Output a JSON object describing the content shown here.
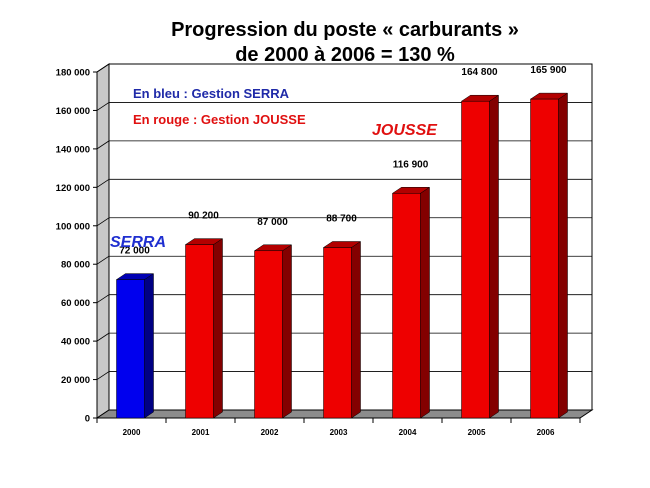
{
  "chart_data": {
    "type": "bar",
    "title": "Progression du poste « carburants »",
    "subtitle": "de 2000 à 2006 = 130 %",
    "categories": [
      "2000",
      "2001",
      "2002",
      "2003",
      "2004",
      "2005",
      "2006"
    ],
    "values": [
      72000,
      90200,
      87000,
      88700,
      116900,
      164800,
      165900
    ],
    "value_labels": [
      "72 000",
      "90 200",
      "87 000",
      "88 700",
      "116 900",
      "164 800",
      "165 900"
    ],
    "bar_colors": [
      "#0000ee",
      "#ee0000",
      "#ee0000",
      "#ee0000",
      "#ee0000",
      "#ee0000",
      "#ee0000"
    ],
    "ylim": [
      0,
      180000
    ],
    "yticks": [
      0,
      20000,
      40000,
      60000,
      80000,
      100000,
      120000,
      140000,
      160000,
      180000
    ],
    "ytick_labels": [
      "0",
      "20 000",
      "40 000",
      "60 000",
      "80 000",
      "100 000",
      "120 000",
      "140 000",
      "160 000",
      "180 000"
    ],
    "grid": true,
    "annotations": {
      "legend_blue": "En bleu : Gestion SERRA",
      "legend_red": "En rouge : Gestion JOUSSE",
      "label_serra": "SERRA",
      "label_jousse": "JOUSSE"
    },
    "colors": {
      "blue_bar": "#0000ee",
      "red_bar": "#ee0000",
      "legend_blue": "#1f2aa8",
      "legend_red": "#e01010"
    }
  }
}
